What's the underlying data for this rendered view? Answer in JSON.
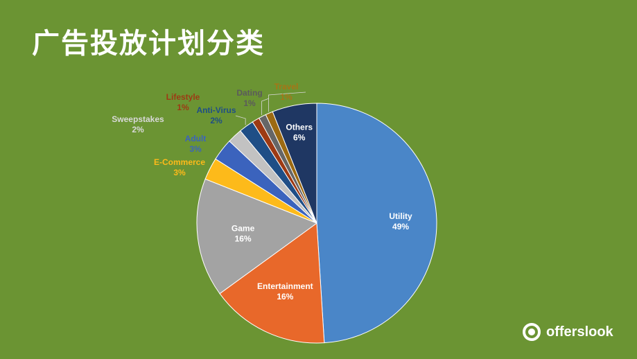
{
  "slide": {
    "title": "广告投放计划分类"
  },
  "brand": {
    "name": "offerslook",
    "logo_icon": "offerslook-logo-icon"
  },
  "chart_data": {
    "type": "pie",
    "title": "",
    "start_angle_deg": 0,
    "direction": "clockwise",
    "slices": [
      {
        "name": "Utility",
        "value": 49,
        "label": "49%",
        "color": "#4a86c8",
        "label_color": "#ffffff"
      },
      {
        "name": "Entertainment",
        "value": 16,
        "label": "16%",
        "color": "#e8682a",
        "label_color": "#ffffff"
      },
      {
        "name": "Game",
        "value": 16,
        "label": "16%",
        "color": "#a3a3a3",
        "label_color": "#ffffff"
      },
      {
        "name": "E-Commerce",
        "value": 3,
        "label": "3%",
        "color": "#fdba1a",
        "label_color": "#fdba1a"
      },
      {
        "name": "Adult",
        "value": 3,
        "label": "3%",
        "color": "#3b63bd",
        "label_color": "#3b63bd"
      },
      {
        "name": "Sweepstakes",
        "value": 2,
        "label": "2%",
        "color": "#c2c2c2",
        "label_color": "#d9d9d9"
      },
      {
        "name": "Anti-Virus",
        "value": 2,
        "label": "2%",
        "color": "#1f4e86",
        "label_color": "#1f4e86"
      },
      {
        "name": "Lifestyle",
        "value": 1,
        "label": "1%",
        "color": "#9d3a14",
        "label_color": "#9d3a14"
      },
      {
        "name": "Dating",
        "value": 1,
        "label": "1%",
        "color": "#666666",
        "label_color": "#5b5b5b"
      },
      {
        "name": "Travel",
        "value": 1,
        "label": "1%",
        "color": "#9c6a12",
        "label_color": "#a87416"
      },
      {
        "name": "Others",
        "value": 6,
        "label": "6%",
        "color": "#1f3763",
        "label_color": "#ffffff"
      }
    ]
  }
}
